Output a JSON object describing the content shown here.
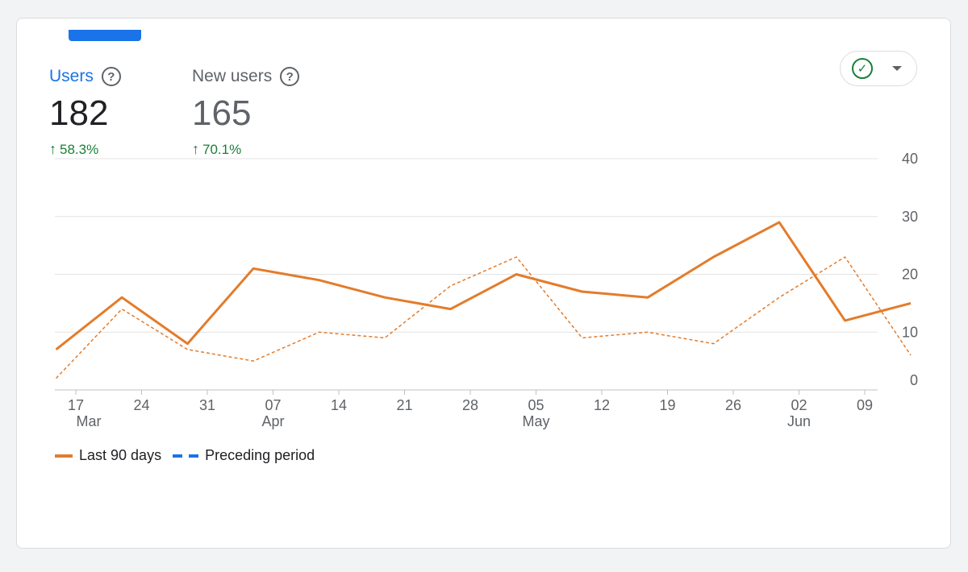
{
  "metrics": [
    {
      "label": "Users",
      "value": "182",
      "change": "58.3%"
    },
    {
      "label": "New users",
      "value": "165",
      "change": "70.1%"
    }
  ],
  "colors": {
    "series": "#e37c2b",
    "preceding_legend": "#1a73e8",
    "positive": "#188038",
    "accent": "#1a73e8"
  },
  "chart_data": {
    "type": "line",
    "title": "",
    "xlabel": "",
    "ylabel": "",
    "ylim": [
      0,
      40
    ],
    "y_ticks": [
      0,
      10,
      20,
      30,
      40
    ],
    "x_ticks": [
      {
        "label": "17",
        "sub": "Mar"
      },
      {
        "label": "24",
        "sub": ""
      },
      {
        "label": "31",
        "sub": ""
      },
      {
        "label": "07",
        "sub": "Apr"
      },
      {
        "label": "14",
        "sub": ""
      },
      {
        "label": "21",
        "sub": ""
      },
      {
        "label": "28",
        "sub": ""
      },
      {
        "label": "05",
        "sub": "May"
      },
      {
        "label": "12",
        "sub": ""
      },
      {
        "label": "19",
        "sub": ""
      },
      {
        "label": "26",
        "sub": ""
      },
      {
        "label": "02",
        "sub": "Jun"
      },
      {
        "label": "09",
        "sub": ""
      }
    ],
    "x_start_offset": -0.3,
    "series": [
      {
        "name": "Last 90 days",
        "style": "solid",
        "values": [
          7,
          16,
          8,
          21,
          19,
          16,
          14,
          20,
          17,
          16,
          23,
          29,
          12,
          15
        ]
      },
      {
        "name": "Preceding period",
        "style": "dashed",
        "values": [
          2,
          14,
          7,
          5,
          10,
          9,
          18,
          23,
          9,
          10,
          8,
          16,
          23,
          6
        ]
      }
    ],
    "legend": {
      "position": "bottom-left"
    }
  }
}
